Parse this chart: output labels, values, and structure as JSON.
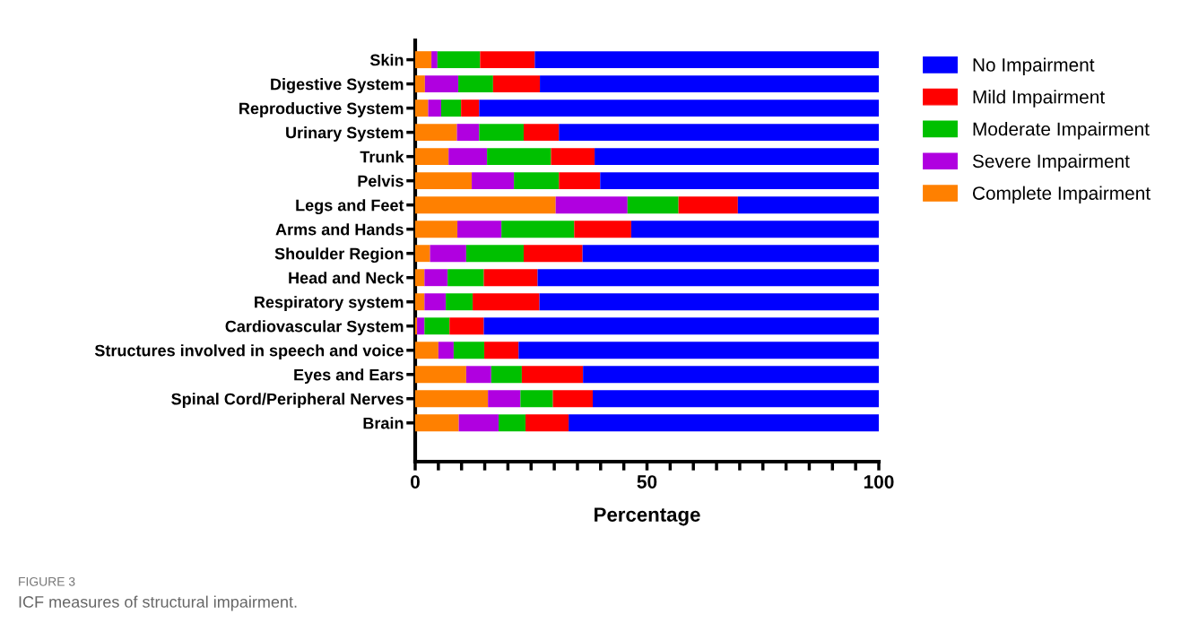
{
  "chart_data": {
    "type": "bar",
    "orientation": "horizontal",
    "stacked": true,
    "categories": [
      "Skin",
      "Digestive System",
      "Reproductive System",
      "Urinary System",
      "Trunk",
      "Pelvis",
      "Legs and Feet",
      "Arms and Hands",
      "Shoulder Region",
      "Head and Neck",
      "Respiratory system",
      "Cardiovascular System",
      "Structures involved in speech and voice",
      "Eyes and Ears",
      "Spinal Cord/Peripheral Nerves",
      "Brain"
    ],
    "series": [
      {
        "name": "Complete Impairment",
        "color": "#ff8000",
        "values": [
          3.5,
          2.1,
          2.8,
          9.0,
          7.2,
          12.2,
          30.3,
          9.1,
          3.2,
          2.0,
          2.0,
          0.4,
          5.0,
          11.0,
          15.7,
          9.4
        ]
      },
      {
        "name": "Severe Impairment",
        "color": "#b000e0",
        "values": [
          1.3,
          7.2,
          2.8,
          4.8,
          8.3,
          9.1,
          15.5,
          9.5,
          7.8,
          5.0,
          4.6,
          1.6,
          3.3,
          5.4,
          7.0,
          8.6
        ]
      },
      {
        "name": "Moderate Impairment",
        "color": "#00c000",
        "values": [
          9.2,
          7.5,
          4.3,
          9.6,
          13.8,
          9.7,
          11.0,
          15.7,
          12.4,
          7.8,
          5.8,
          5.4,
          6.6,
          6.6,
          7.0,
          5.8
        ]
      },
      {
        "name": "Mild Impairment",
        "color": "#ff0000",
        "values": [
          11.8,
          10.1,
          3.9,
          7.6,
          9.4,
          8.9,
          12.8,
          12.3,
          12.7,
          11.6,
          14.4,
          7.4,
          7.4,
          13.2,
          8.6,
          9.3
        ]
      },
      {
        "name": "No Impairment",
        "color": "#0000ff",
        "values": [
          74.2,
          73.1,
          86.2,
          69.0,
          61.3,
          60.1,
          30.4,
          53.4,
          63.9,
          73.6,
          73.2,
          85.2,
          77.7,
          63.8,
          61.7,
          66.9
        ]
      }
    ],
    "xlabel": "Percentage",
    "xlim": [
      0,
      100
    ],
    "xticks": [
      0,
      {
        "value": 5,
        "label": null
      },
      {
        "value": 10,
        "label": null
      },
      {
        "value": 15,
        "label": null
      },
      {
        "value": 20,
        "label": null
      },
      {
        "value": 25,
        "label": null
      },
      {
        "value": 30,
        "label": null
      },
      {
        "value": 35,
        "label": null
      },
      {
        "value": 40,
        "label": null
      },
      {
        "value": 45,
        "label": null
      },
      50,
      {
        "value": 55,
        "label": null
      },
      {
        "value": 60,
        "label": null
      },
      {
        "value": 65,
        "label": null
      },
      {
        "value": 70,
        "label": null
      },
      {
        "value": 75,
        "label": null
      },
      {
        "value": 80,
        "label": null
      },
      {
        "value": 85,
        "label": null
      },
      {
        "value": 90,
        "label": null
      },
      {
        "value": 95,
        "label": null
      },
      100
    ],
    "legend": "right",
    "grid": false,
    "annotations": [
      "FIGURE 3",
      "ICF measures of structural impairment."
    ]
  }
}
